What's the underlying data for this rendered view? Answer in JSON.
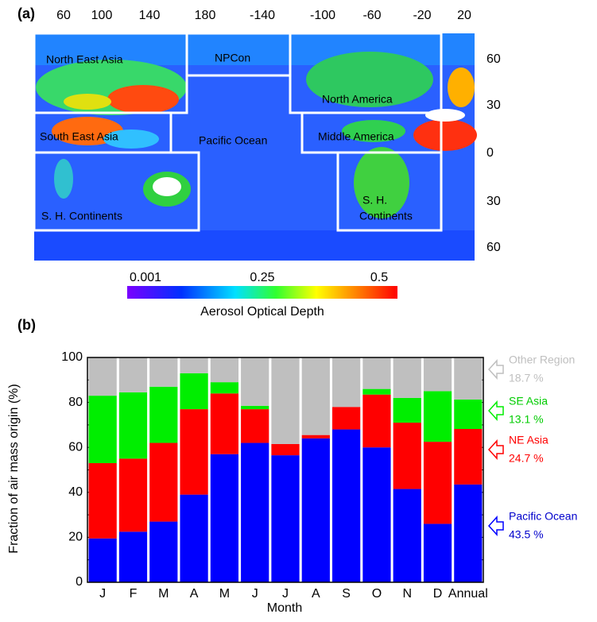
{
  "map": {
    "panel_label": "(a)",
    "lon_labels": [
      "60",
      "100",
      "140",
      "180",
      "-140",
      "-100",
      "-60",
      "-20",
      "20"
    ],
    "lat_labels": [
      "60",
      "30",
      "0",
      "30",
      "60"
    ],
    "regions": [
      "North East Asia",
      "NPCon",
      "North America",
      "South East Asia",
      "Pacific Ocean",
      "Middle America",
      "S. H. Continents",
      "S. H.",
      "Continents"
    ],
    "colorbar_labels": [
      "0.001",
      "0.25",
      "0.5"
    ],
    "colorbar_title": "Aerosol Optical Depth"
  },
  "chart_data": {
    "type": "stacked_bar",
    "panel_label": "(b)",
    "ylabel": "Fraction of air mass origin (%)",
    "xlabel": "Month",
    "categories": [
      "J",
      "F",
      "M",
      "A",
      "M",
      "J",
      "J",
      "A",
      "S",
      "O",
      "N",
      "D",
      "Annual"
    ],
    "series": [
      {
        "name": "Pacific Ocean",
        "color": "#0000ff",
        "label_color": "#0000cc",
        "annual_label": "43.5 %",
        "values": [
          19.5,
          22.5,
          27,
          39,
          57,
          62,
          56.5,
          64,
          68,
          60,
          41.5,
          26,
          43.5
        ]
      },
      {
        "name": "NE Asia",
        "color": "#ff0000",
        "label_color": "#ff0000",
        "annual_label": "24.7 %",
        "values": [
          33.5,
          32.5,
          35,
          38,
          27,
          15,
          5,
          1.5,
          10,
          23.5,
          29.5,
          36.5,
          24.7
        ]
      },
      {
        "name": "SE Asia",
        "color": "#00ee00",
        "label_color": "#00cc00",
        "annual_label": "13.1 %",
        "values": [
          30,
          29.5,
          25,
          16,
          5,
          1.5,
          0,
          0,
          0,
          2.5,
          11,
          22.5,
          13.1
        ]
      },
      {
        "name": "Other Region",
        "color": "#bfbfbf",
        "label_color": "#bfbfbf",
        "annual_label": "18.7 %",
        "values": [
          17,
          15.5,
          13,
          7,
          11,
          21.5,
          38.5,
          34.5,
          22,
          14,
          18,
          15,
          18.7
        ]
      }
    ],
    "ylim": [
      0,
      100
    ],
    "yticks": [
      0,
      20,
      40,
      60,
      80,
      100
    ]
  }
}
